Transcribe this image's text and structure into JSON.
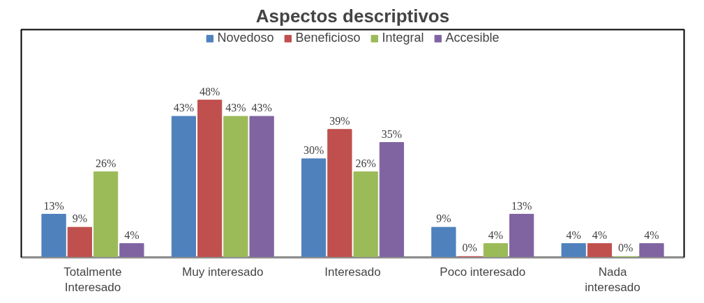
{
  "chart_data": {
    "type": "bar",
    "title": "Aspectos descriptivos",
    "categories": [
      "Totalmente\nInteresado",
      "Muy interesado",
      "Interesado",
      "Poco interesado",
      "Nada\ninteresado"
    ],
    "series": [
      {
        "name": "Novedoso",
        "color": "#4f81bd",
        "values": [
          13,
          43,
          30,
          9,
          4
        ],
        "value_labels": [
          "13%",
          "43%",
          "30%",
          "9%",
          "4%"
        ]
      },
      {
        "name": "Beneficioso",
        "color": "#c0504d",
        "values": [
          9,
          48,
          39,
          0,
          4
        ],
        "value_labels": [
          "9%",
          "48%",
          "39%",
          "0%",
          "4%"
        ]
      },
      {
        "name": "Integral",
        "color": "#9bbb59",
        "values": [
          26,
          43,
          26,
          4,
          0
        ],
        "value_labels": [
          "26%",
          "43%",
          "26%",
          "4%",
          "0%"
        ]
      },
      {
        "name": "Accesible",
        "color": "#8064a2",
        "values": [
          4,
          43,
          35,
          13,
          4
        ],
        "value_labels": [
          "4%",
          "43%",
          "35%",
          "13%",
          "4%"
        ]
      }
    ],
    "legend": "top",
    "tick_labels": "x"
  }
}
